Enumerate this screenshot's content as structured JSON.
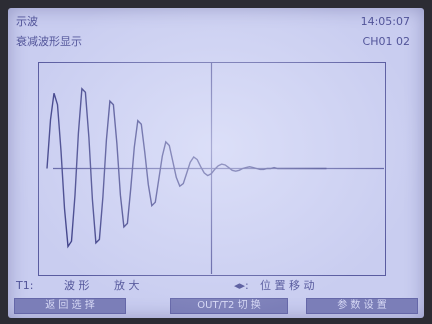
{
  "header": {
    "title": "示波",
    "subtitle": "衰减波形显示",
    "time": "14:05:07",
    "channel": "CH01 02"
  },
  "status": {
    "t_label": "T1:",
    "mode": "波 形",
    "action": "放 大",
    "arrows": "◂▸:",
    "move": "位 置 移 动"
  },
  "softkeys": [
    "返 回 选 择",
    "OUT/T2 切 换",
    "参 数 设 置"
  ],
  "colors": {
    "lcd_background": "#c9cdf0",
    "trace": "#3b3d86",
    "softkey": "#7b7eb8"
  },
  "chart_data": {
    "type": "line",
    "description_visible": "damped oscillation waveform",
    "x": [
      0,
      1,
      2,
      3,
      4,
      5,
      6,
      7,
      8,
      9,
      10,
      11,
      12,
      13,
      14,
      15,
      16,
      17,
      18,
      19,
      20,
      21,
      22,
      23,
      24,
      25,
      26,
      27,
      28,
      29,
      30,
      31,
      32,
      33,
      34,
      35,
      36,
      37,
      38,
      39,
      40,
      41,
      42,
      43,
      44,
      45,
      46,
      47,
      48,
      49,
      50,
      51,
      52,
      53,
      54,
      55,
      56,
      57,
      58,
      59,
      60,
      61,
      62,
      63,
      64,
      65,
      66,
      67,
      68,
      69,
      70,
      71,
      72,
      73,
      74,
      75,
      76,
      77,
      78,
      79,
      80
    ],
    "y": [
      0,
      0.55,
      0.85,
      0.72,
      0.2,
      -0.45,
      -0.88,
      -0.82,
      -0.3,
      0.4,
      0.9,
      0.86,
      0.35,
      -0.35,
      -0.84,
      -0.8,
      -0.32,
      0.32,
      0.76,
      0.72,
      0.28,
      -0.3,
      -0.66,
      -0.62,
      -0.22,
      0.24,
      0.54,
      0.5,
      0.18,
      -0.18,
      -0.42,
      -0.38,
      -0.12,
      0.14,
      0.3,
      0.26,
      0.08,
      -0.1,
      -0.2,
      -0.17,
      -0.05,
      0.07,
      0.13,
      0.1,
      0.02,
      -0.05,
      -0.08,
      -0.06,
      -0.01,
      0.03,
      0.05,
      0.04,
      0.01,
      -0.02,
      -0.03,
      -0.02,
      0,
      0.01,
      0.02,
      0.01,
      0,
      -0.01,
      -0.01,
      0,
      0,
      0.01,
      0,
      0,
      0,
      0,
      0,
      0,
      0,
      0,
      0,
      0,
      0,
      0,
      0,
      0,
      0
    ],
    "ylim": [
      -1,
      1
    ],
    "xlim": [
      0,
      80
    ],
    "grid": "center crosshair"
  }
}
